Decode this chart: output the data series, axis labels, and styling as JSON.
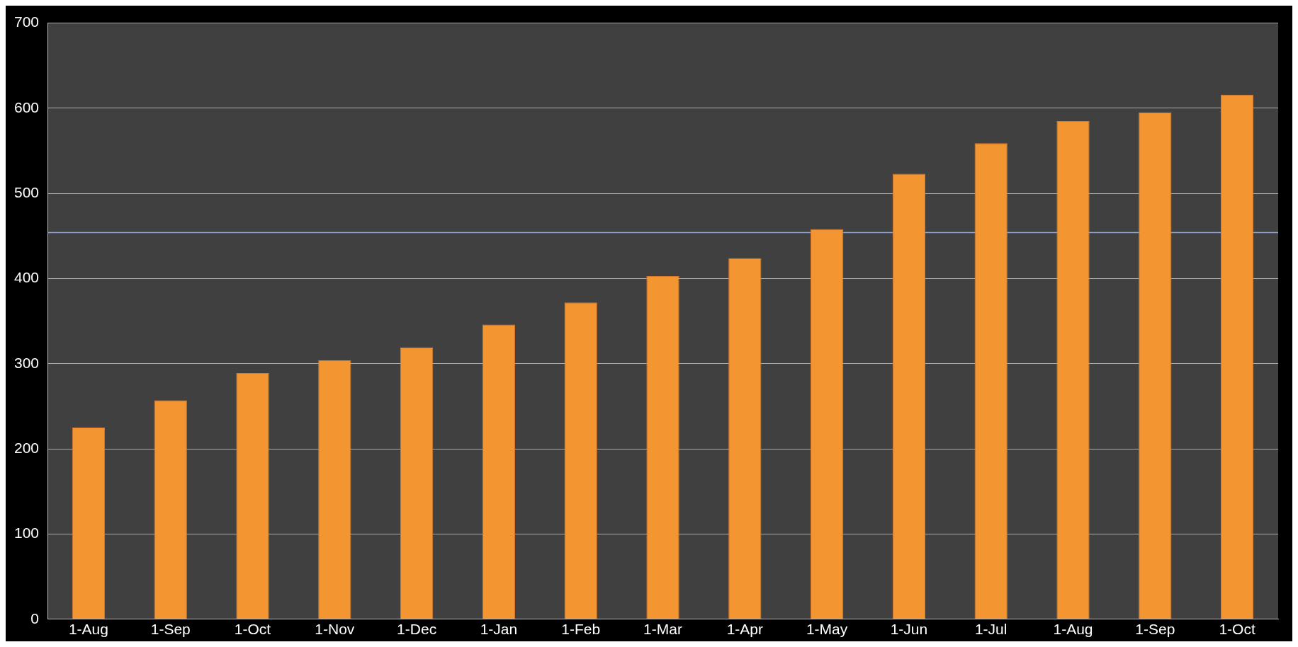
{
  "chart_data": {
    "type": "bar",
    "categories": [
      "1-Aug",
      "1-Sep",
      "1-Oct",
      "1-Nov",
      "1-Dec",
      "1-Jan",
      "1-Feb",
      "1-Mar",
      "1-Apr",
      "1-May",
      "1-Jun",
      "1-Jul",
      "1-Aug",
      "1-Sep",
      "1-Oct"
    ],
    "values": [
      225,
      257,
      289,
      304,
      319,
      346,
      372,
      403,
      424,
      458,
      523,
      559,
      585,
      595,
      616
    ],
    "color": "#f39530",
    "ylim": [
      0,
      700
    ],
    "yticks": [
      0,
      100,
      200,
      300,
      400,
      500,
      600,
      700
    ],
    "grid": "y",
    "legend": false,
    "ref_lines": [
      {
        "axis": "y",
        "value": 454,
        "color": "#8fa3c8"
      }
    ]
  }
}
